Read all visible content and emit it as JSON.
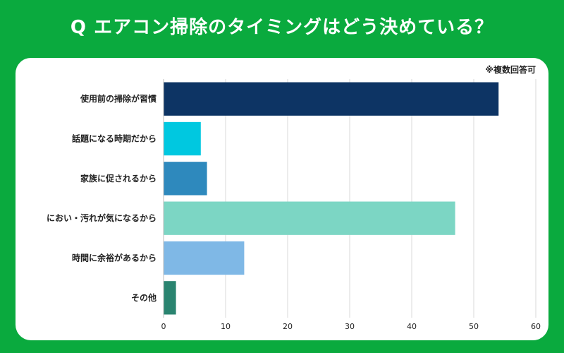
{
  "header": {
    "title": "Q エアコン掃除のタイミングはどう決めている？"
  },
  "note": "※複数回答可",
  "chart_data": {
    "type": "bar",
    "orientation": "horizontal",
    "title": "Q エアコン掃除のタイミングはどう決めている？",
    "categories": [
      "使用前の掃除が習慣",
      "話題になる時期だから",
      "家族に促されるから",
      "におい・汚れが気になるから",
      "時間に余裕があるから",
      "その他"
    ],
    "values": [
      54,
      6,
      7,
      47,
      13,
      2
    ],
    "colors": [
      "#0d3464",
      "#00c8e0",
      "#2e89bd",
      "#7cd6c4",
      "#7fb8e6",
      "#2a8470"
    ],
    "xlim": [
      0,
      60
    ],
    "xticks": [
      0,
      10,
      20,
      30,
      40,
      50,
      60
    ],
    "grid": true,
    "xlabel": "",
    "ylabel": ""
  }
}
